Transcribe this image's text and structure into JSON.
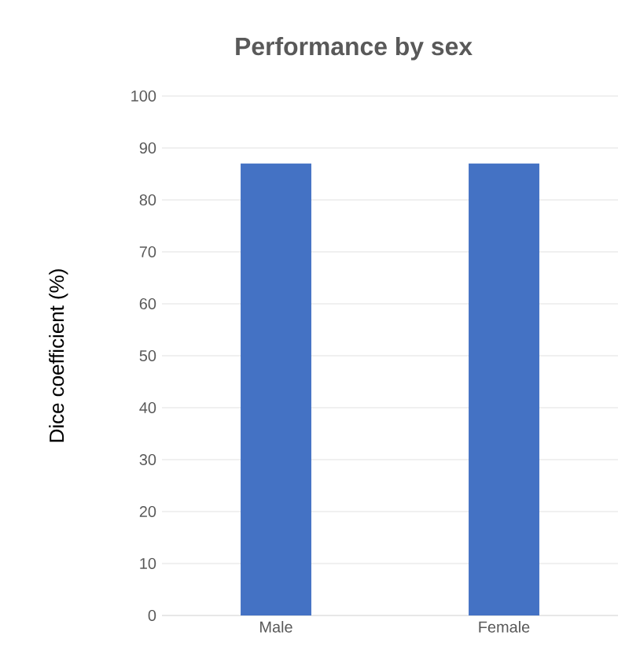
{
  "chart_data": {
    "type": "bar",
    "title": "Performance by sex",
    "ylabel": "Dice coefficient (%)",
    "categories": [
      "Male",
      "Female"
    ],
    "values": [
      87,
      87
    ],
    "color": "#4472c4",
    "ylim": [
      0,
      100
    ],
    "yticks": [
      0,
      10,
      20,
      30,
      40,
      50,
      60,
      70,
      80,
      90,
      100
    ],
    "grid": "y"
  }
}
